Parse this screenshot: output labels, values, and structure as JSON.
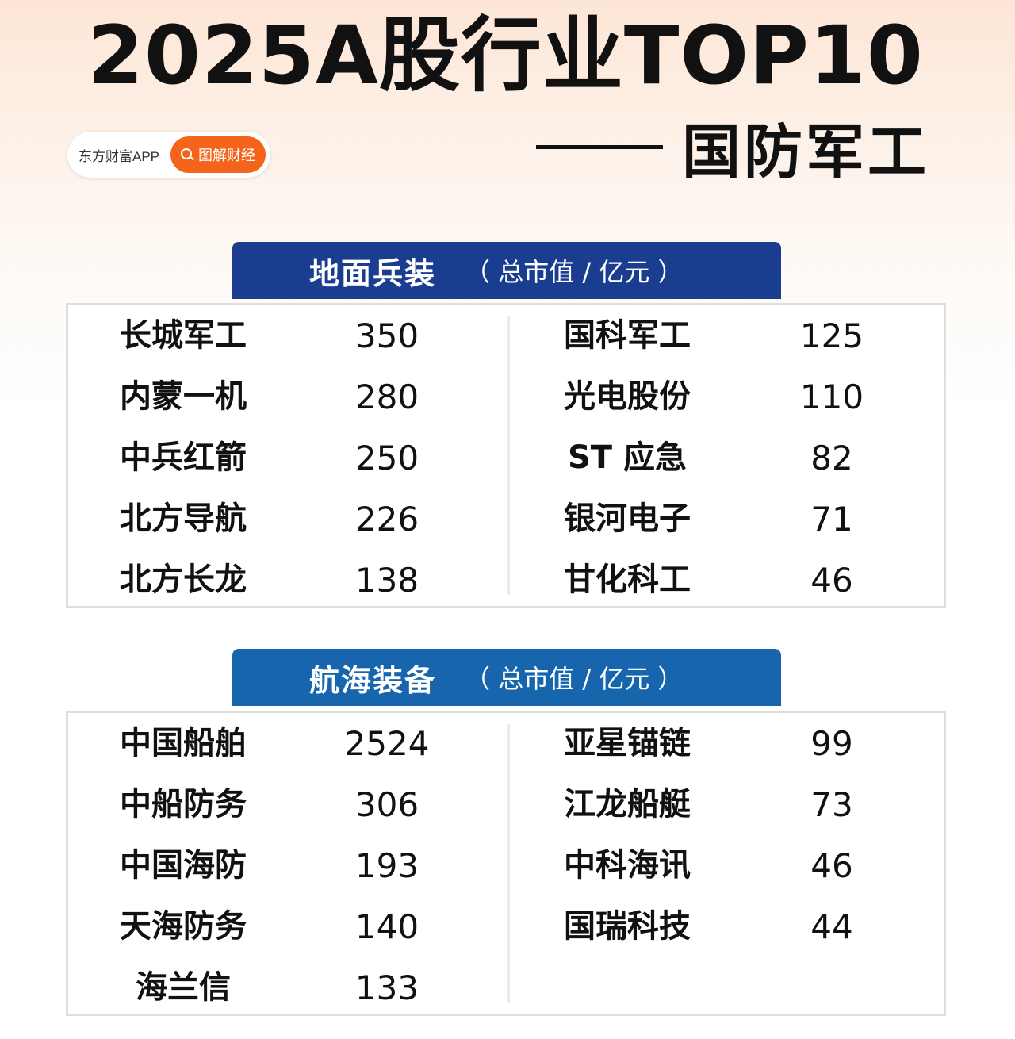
{
  "header": {
    "title": "2025A股行业TOP10",
    "subtitle": "国防军工"
  },
  "brand": {
    "name": "东方财富APP",
    "tag": "图解财经"
  },
  "sections": [
    {
      "title": "地面兵装",
      "unit": "（ 总市值 / 亿元 ）",
      "left": [
        {
          "name": "长城军工",
          "value": "350"
        },
        {
          "name": "内蒙一机",
          "value": "280"
        },
        {
          "name": "中兵红箭",
          "value": "250"
        },
        {
          "name": "北方导航",
          "value": "226"
        },
        {
          "name": "北方长龙",
          "value": "138"
        }
      ],
      "right": [
        {
          "name": "国科军工",
          "value": "125"
        },
        {
          "name": "光电股份",
          "value": "110"
        },
        {
          "name": "ST 应急",
          "value": "82"
        },
        {
          "name": "银河电子",
          "value": "71"
        },
        {
          "name": "甘化科工",
          "value": "46"
        }
      ]
    },
    {
      "title": "航海装备",
      "unit": "（ 总市值 / 亿元 ）",
      "left": [
        {
          "name": "中国船舶",
          "value": "2524"
        },
        {
          "name": "中船防务",
          "value": "306"
        },
        {
          "name": "中国海防",
          "value": "193"
        },
        {
          "name": "天海防务",
          "value": "140"
        },
        {
          "name": "海兰信",
          "value": "133"
        }
      ],
      "right": [
        {
          "name": "亚星锚链",
          "value": "99"
        },
        {
          "name": "江龙船艇",
          "value": "73"
        },
        {
          "name": "中科海讯",
          "value": "46"
        },
        {
          "name": "国瑞科技",
          "value": "44"
        }
      ]
    }
  ],
  "colors": {
    "brand_orange": "#f4651b",
    "section1_header": "#1b3d8f",
    "section2_header": "#1766ad"
  }
}
